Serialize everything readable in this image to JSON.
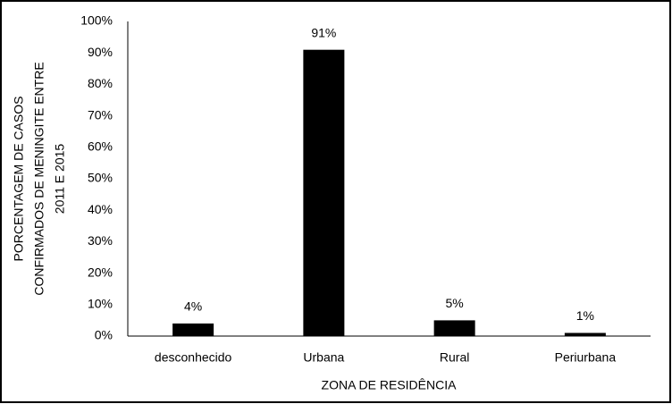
{
  "chart_data": {
    "type": "bar",
    "categories": [
      "desconhecido",
      "Urbana",
      "Rural",
      "Periurbana"
    ],
    "values": [
      4,
      91,
      5,
      1
    ],
    "value_labels": [
      "4%",
      "91%",
      "5%",
      "1%"
    ],
    "color": "#000000",
    "xlabel": "ZONA DE RESIDÊNCIA",
    "ylabel": [
      "PORCENTAGEM DE CASOS",
      "CONFIRMADOS DE MENINGITE ENTRE",
      "2011 E 2015"
    ],
    "ylim": [
      0,
      100
    ],
    "yticks": [
      {
        "value": 0,
        "label": "0%"
      },
      {
        "value": 10,
        "label": "10%"
      },
      {
        "value": 20,
        "label": "20%"
      },
      {
        "value": 30,
        "label": "30%"
      },
      {
        "value": 40,
        "label": "40%"
      },
      {
        "value": 50,
        "label": "50%"
      },
      {
        "value": 60,
        "label": "60%"
      },
      {
        "value": 70,
        "label": "70%"
      },
      {
        "value": 80,
        "label": "80%"
      },
      {
        "value": 90,
        "label": "90%"
      },
      {
        "value": 100,
        "label": "100%"
      }
    ],
    "grid": false
  }
}
